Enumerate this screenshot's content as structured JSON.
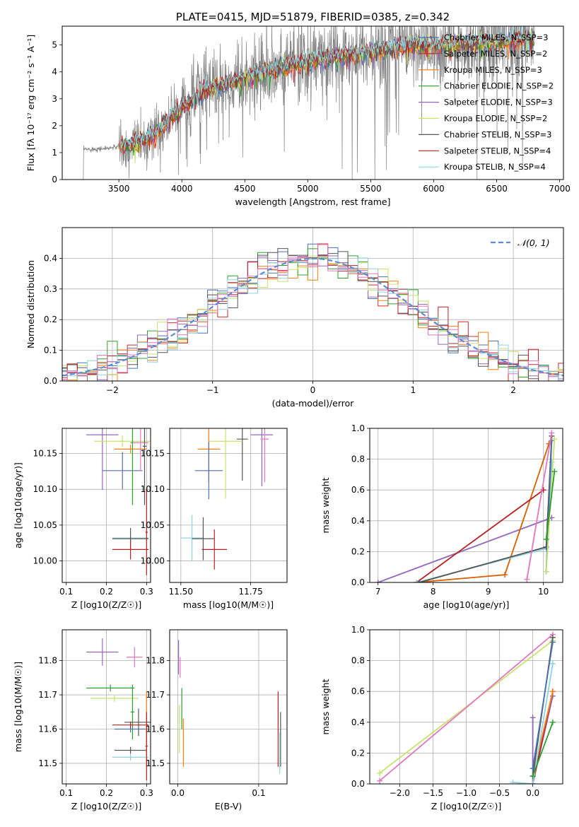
{
  "chart_data": [
    {
      "id": "spectrum",
      "type": "line",
      "title": "PLATE=0415, MJD=51879, FIBERID=0385, z=0.342",
      "xlabel": "wavelength [Angstrom, rest frame]",
      "ylabel": "Flux [fλ 10⁻¹⁷ erg cm⁻² s⁻¹ A⁻¹]",
      "xlim": [
        3050,
        7030
      ],
      "ylim": [
        0,
        5.7
      ],
      "xticks": [
        "3500",
        "4000",
        "4500",
        "5000",
        "5500",
        "6000",
        "6500",
        "7000"
      ],
      "yticks": [
        "0",
        "1",
        "2",
        "3",
        "4",
        "5"
      ],
      "grid": false,
      "legend": "top-right",
      "continuum_shape": {
        "x": [
          3220,
          3400,
          3600,
          3800,
          4000,
          4200,
          4400,
          4600,
          4800,
          5000,
          5200,
          5400,
          5600,
          5800,
          6000,
          6200,
          6400,
          6600,
          6800
        ],
        "y": [
          1.12,
          1.15,
          1.3,
          1.75,
          2.7,
          3.35,
          3.65,
          3.95,
          4.2,
          4.4,
          4.55,
          4.7,
          4.85,
          5.0,
          5.0,
          5.05,
          5.1,
          5.15,
          5.2
        ]
      },
      "series": [
        {
          "name": "Chabrier MILES, N_SSP=3",
          "color": "#4c72b0"
        },
        {
          "name": "Salpeter MILES, N_SSP=2",
          "color": "#d62728"
        },
        {
          "name": "Kroupa MILES, N_SSP=3",
          "color": "#ff7f0e"
        },
        {
          "name": "Chabrier ELODIE, N_SSP=2",
          "color": "#2ca02c"
        },
        {
          "name": "Salpeter ELODIE, N_SSP=3",
          "color": "#9467bd"
        },
        {
          "name": "Kroupa ELODIE, N_SSP=2",
          "color": "#c5e36b"
        },
        {
          "name": "Chabrier STELIB, N_SSP=3",
          "color": "#555555"
        },
        {
          "name": "Salpeter STELIB, N_SSP=4",
          "color": "#b22222"
        },
        {
          "name": "Kroupa STELIB, N_SSP=4",
          "color": "#8fd3e0"
        }
      ]
    },
    {
      "id": "residuals",
      "type": "area",
      "xlabel": "(data-model)/error",
      "ylabel": "Normed distribution",
      "xlim": [
        -2.5,
        2.5
      ],
      "ylim": [
        0,
        0.5
      ],
      "xticks": [
        "−2",
        "−1",
        "0",
        "1",
        "2"
      ],
      "yticks": [
        "0.0",
        "0.1",
        "0.2",
        "0.3",
        "0.4"
      ],
      "grid": true,
      "legend": "top-right",
      "reference_curve": {
        "name": "𝒩(0, 1)",
        "color": "#5b8bd6",
        "style": "dashed"
      },
      "bin_width": 0.1,
      "colors": [
        "#4c72b0",
        "#d62728",
        "#ff7f0e",
        "#2ca02c",
        "#9467bd",
        "#c5e36b",
        "#555555",
        "#b22222",
        "#8fd3e0",
        "#e377c2"
      ]
    },
    {
      "id": "age-vs-Z",
      "type": "scatter",
      "xlabel": "Z [log10(Z/Z☉)]",
      "ylabel": "age  [log10(age/yr)]",
      "xlim": [
        0.09,
        0.31
      ],
      "ylim": [
        9.97,
        10.185
      ],
      "xticks": [
        "0.1",
        "0.2",
        "0.3"
      ],
      "yticks": [
        "10.00",
        "10.05",
        "10.10",
        "10.15"
      ],
      "grid": true,
      "points": [
        {
          "x": 0.19,
          "y": 10.176,
          "xerr": 0.04,
          "yerr": 0.077,
          "color": "#9467bd"
        },
        {
          "x": 0.24,
          "y": 10.167,
          "xerr": 0.07,
          "yerr": 0.008,
          "color": "#c5e36b"
        },
        {
          "x": 0.26,
          "y": 10.156,
          "xerr": 0.04,
          "yerr": 0.006,
          "color": "#ff7f0e"
        },
        {
          "x": 0.24,
          "y": 10.126,
          "xerr": 0.05,
          "yerr": 0.026,
          "color": "#4c72b0"
        },
        {
          "x": 0.265,
          "y": 10.165,
          "xerr": 0.005,
          "yerr": 0.087,
          "color": "#2ca02c"
        },
        {
          "x": 0.285,
          "y": 10.165,
          "xerr": 0.02,
          "yerr": 0.04,
          "color": "#e377c2"
        },
        {
          "x": 0.295,
          "y": 10.16,
          "xerr": 0.005,
          "yerr": 0.082,
          "color": "#555555"
        },
        {
          "x": 0.26,
          "y": 10.032,
          "xerr": 0.045,
          "yerr": 0.003,
          "color": "#8fd3e0"
        },
        {
          "x": 0.26,
          "y": 10.031,
          "xerr": 0.045,
          "yerr": 0.015,
          "color": "#555555"
        },
        {
          "x": 0.26,
          "y": 10.016,
          "xerr": 0.045,
          "yerr": 0.014,
          "color": "#b22222"
        },
        {
          "x": 0.3,
          "y": 10.04,
          "xerr": 0.003,
          "yerr": 0.06,
          "color": "#b22222"
        }
      ]
    },
    {
      "id": "age-vs-mass",
      "type": "scatter",
      "xlabel": "mass [log10(M/M☉)]",
      "ylabel": "",
      "xlim": [
        11.46,
        11.88
      ],
      "ylim": [
        9.97,
        10.185
      ],
      "xticks": [
        "11.50",
        "11.75"
      ],
      "yticks": [
        "10.00",
        "10.05",
        "10.10",
        "10.15"
      ],
      "grid": true,
      "points": [
        {
          "x": 11.79,
          "y": 10.176,
          "xerr": 0.04,
          "yerr": 0.072,
          "color": "#9467bd"
        },
        {
          "x": 11.72,
          "y": 10.17,
          "xerr": 0.02,
          "yerr": 0.058,
          "color": "#555555"
        },
        {
          "x": 11.66,
          "y": 10.167,
          "xerr": 0.06,
          "yerr": 0.08,
          "color": "#c5e36b"
        },
        {
          "x": 11.6,
          "y": 10.156,
          "xerr": 0.04,
          "yerr": 0.046,
          "color": "#ff7f0e"
        },
        {
          "x": 11.6,
          "y": 10.126,
          "xerr": 0.05,
          "yerr": 0.04,
          "color": "#4c72b0"
        },
        {
          "x": 11.8,
          "y": 10.17,
          "xerr": 0.015,
          "yerr": 0.06,
          "color": "#e377c2"
        },
        {
          "x": 11.54,
          "y": 10.032,
          "xerr": 0.04,
          "yerr": 0.032,
          "color": "#8fd3e0"
        },
        {
          "x": 11.58,
          "y": 10.031,
          "xerr": 0.04,
          "yerr": 0.03,
          "color": "#555555"
        },
        {
          "x": 11.62,
          "y": 10.016,
          "xerr": 0.045,
          "yerr": 0.028,
          "color": "#b22222"
        }
      ]
    },
    {
      "id": "massweight-vs-age",
      "type": "line",
      "xlabel": "age  [log10(age/yr)]",
      "ylabel": "mass weight",
      "xlim": [
        6.85,
        10.35
      ],
      "ylim": [
        0,
        1.0
      ],
      "xticks": [
        "7",
        "8",
        "9",
        "10"
      ],
      "yticks": [
        "0.0",
        "0.2",
        "0.4",
        "0.6",
        "0.8",
        "1.0"
      ],
      "grid": true,
      "series": [
        {
          "color": "#9467bd",
          "x": [
            7.0,
            10.15
          ],
          "y": [
            0.0,
            0.42
          ]
        },
        {
          "color": "#d95f02",
          "x": [
            7.7,
            9.3,
            10.1
          ],
          "y": [
            0.0,
            0.05,
            0.9
          ]
        },
        {
          "color": "#b22222",
          "x": [
            7.7,
            10.0
          ],
          "y": [
            0.0,
            0.6
          ]
        },
        {
          "color": "#8fd3e0",
          "x": [
            7.7,
            10.05,
            10.15
          ],
          "y": [
            0.0,
            0.22,
            0.78
          ]
        },
        {
          "color": "#555555",
          "x": [
            7.75,
            10.05,
            10.15
          ],
          "y": [
            0.0,
            0.23,
            0.95
          ]
        },
        {
          "color": "#4c72b0",
          "x": [
            10.05,
            10.15
          ],
          "y": [
            0.07,
            0.92
          ]
        },
        {
          "color": "#c5e36b",
          "x": [
            10.05,
            10.2
          ],
          "y": [
            0.07,
            0.93
          ]
        },
        {
          "color": "#e377c2",
          "x": [
            9.7,
            10.15
          ],
          "y": [
            0.02,
            0.97
          ]
        },
        {
          "color": "#2ca02c",
          "x": [
            10.05,
            10.2
          ],
          "y": [
            0.28,
            0.72
          ]
        }
      ]
    },
    {
      "id": "mass-vs-Z",
      "type": "scatter",
      "xlabel": "Z [log10(Z/Z☉)]",
      "ylabel": "mass [log10(M/M☉)]",
      "xlim": [
        0.09,
        0.31
      ],
      "ylim": [
        11.44,
        11.89
      ],
      "xticks": [
        "0.1",
        "0.2",
        "0.3"
      ],
      "yticks": [
        "11.5",
        "11.6",
        "11.7",
        "11.8"
      ],
      "grid": true,
      "points": [
        {
          "x": 0.19,
          "y": 11.825,
          "xerr": 0.04,
          "yerr": 0.04,
          "color": "#9467bd"
        },
        {
          "x": 0.27,
          "y": 11.81,
          "xerr": 0.02,
          "yerr": 0.03,
          "color": "#e377c2"
        },
        {
          "x": 0.21,
          "y": 11.72,
          "xerr": 0.06,
          "yerr": 0.01,
          "color": "#2ca02c"
        },
        {
          "x": 0.22,
          "y": 11.69,
          "xerr": 0.06,
          "yerr": 0.01,
          "color": "#c5e36b"
        },
        {
          "x": 0.265,
          "y": 11.65,
          "xerr": 0.005,
          "yerr": 0.08,
          "color": "#2ca02c"
        },
        {
          "x": 0.28,
          "y": 11.62,
          "xerr": 0.035,
          "yerr": 0.04,
          "color": "#555555"
        },
        {
          "x": 0.26,
          "y": 11.6,
          "xerr": 0.04,
          "yerr": 0.01,
          "color": "#4c72b0"
        },
        {
          "x": 0.26,
          "y": 11.612,
          "xerr": 0.045,
          "yerr": 0.01,
          "color": "#b22222"
        },
        {
          "x": 0.3,
          "y": 11.6,
          "xerr": 0.003,
          "yerr": 0.11,
          "color": "#ff7f0e"
        },
        {
          "x": 0.26,
          "y": 11.538,
          "xerr": 0.04,
          "yerr": 0.01,
          "color": "#555555"
        },
        {
          "x": 0.26,
          "y": 11.518,
          "xerr": 0.045,
          "yerr": 0.01,
          "color": "#8fd3e0"
        },
        {
          "x": 0.3,
          "y": 11.55,
          "xerr": 0.003,
          "yerr": 0.1,
          "color": "#b22222"
        }
      ]
    },
    {
      "id": "mass-vs-ebv",
      "type": "scatter",
      "xlabel": "E(B-V)",
      "ylabel": "",
      "xlim": [
        -0.01,
        0.135
      ],
      "ylim": [
        11.44,
        11.89
      ],
      "xticks": [
        "0.0",
        "0.1"
      ],
      "yticks": [
        "11.5",
        "11.6",
        "11.7",
        "11.8"
      ],
      "grid": true,
      "points": [
        {
          "x": 0.001,
          "y": 11.81,
          "xerr": 0,
          "yerr": 0.05,
          "color": "#9467bd"
        },
        {
          "x": 0.003,
          "y": 11.78,
          "xerr": 0,
          "yerr": 0.03,
          "color": "#e377c2"
        },
        {
          "x": 0.005,
          "y": 11.66,
          "xerr": 0,
          "yerr": 0.06,
          "color": "#2ca02c"
        },
        {
          "x": 0.002,
          "y": 11.6,
          "xerr": 0,
          "yerr": 0.07,
          "color": "#c5e36b"
        },
        {
          "x": 0.007,
          "y": 11.56,
          "xerr": 0,
          "yerr": 0.07,
          "color": "#ff7f0e"
        },
        {
          "x": 0.124,
          "y": 11.6,
          "xerr": 0,
          "yerr": 0.11,
          "color": "#b22222"
        },
        {
          "x": 0.127,
          "y": 11.57,
          "xerr": 0,
          "yerr": 0.08,
          "color": "#555555"
        },
        {
          "x": 0.126,
          "y": 11.53,
          "xerr": 0,
          "yerr": 0.06,
          "color": "#8fd3e0"
        }
      ]
    },
    {
      "id": "massweight-vs-Z",
      "type": "line",
      "xlabel": "Z [log10(Z/Z☉)]",
      "ylabel": "mass weight",
      "xlim": [
        -2.45,
        0.45
      ],
      "ylim": [
        0,
        1.0
      ],
      "xticks": [
        "−2.0",
        "−1.5",
        "−1.0",
        "−0.5",
        "0.0"
      ],
      "yticks": [
        "0.0",
        "0.2",
        "0.4",
        "0.6",
        "0.8",
        "1.0"
      ],
      "grid": true,
      "series": [
        {
          "color": "#c5e36b",
          "x": [
            -2.3,
            0.3
          ],
          "y": [
            0.07,
            0.93
          ]
        },
        {
          "color": "#e377c2",
          "x": [
            -2.3,
            0.3
          ],
          "y": [
            0.02,
            0.97
          ]
        },
        {
          "color": "#9467bd",
          "x": [
            0.0,
            0.0,
            0.3
          ],
          "y": [
            0.43,
            0.0,
            0.57
          ]
        },
        {
          "color": "#b22222",
          "x": [
            0.0,
            0.3
          ],
          "y": [
            0.0,
            0.6
          ]
        },
        {
          "color": "#ff7f0e",
          "x": [
            0.0,
            0.3
          ],
          "y": [
            0.05,
            0.6
          ]
        },
        {
          "color": "#555555",
          "x": [
            0.0,
            0.3
          ],
          "y": [
            0.05,
            0.95
          ]
        },
        {
          "color": "#8fd3e0",
          "x": [
            -0.3,
            0.0,
            0.3
          ],
          "y": [
            0.01,
            0.0,
            0.78
          ]
        },
        {
          "color": "#4c72b0",
          "x": [
            0.0,
            0.3
          ],
          "y": [
            0.1,
            0.92
          ]
        },
        {
          "color": "#2ca02c",
          "x": [
            0.0,
            0.3
          ],
          "y": [
            0.05,
            0.4
          ]
        }
      ]
    }
  ]
}
